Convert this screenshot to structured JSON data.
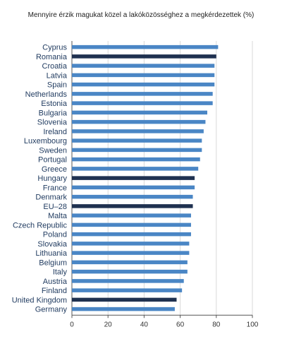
{
  "chart_data": {
    "type": "bar",
    "orientation": "horizontal",
    "title": "Mennyire érzik magukat közel a lakóközösséghez a megkérdezettek (%)",
    "categories": [
      "Cyprus",
      "Romania",
      "Croatia",
      "Latvia",
      "Spain",
      "Netherlands",
      "Estonia",
      "Bulgaria",
      "Slovenia",
      "Ireland",
      "Luxembourg",
      "Sweden",
      "Portugal",
      "Greece",
      "Hungary",
      "France",
      "Denmark",
      "EU–28",
      "Malta",
      "Czech Republic",
      "Poland",
      "Slovakia",
      "Lithuania",
      "Belgium",
      "Italy",
      "Austria",
      "Finland",
      "United Kingdom",
      "Germany"
    ],
    "values": [
      81,
      80,
      79,
      79,
      79,
      78,
      78,
      75,
      74,
      73,
      72,
      72,
      71,
      70,
      68,
      68,
      67,
      67,
      66,
      66,
      66,
      65,
      65,
      64,
      64,
      62,
      61,
      58,
      57
    ],
    "highlighted": [
      "Romania",
      "Hungary",
      "EU–28",
      "United Kingdom"
    ],
    "xticks": [
      0,
      20,
      40,
      60,
      80,
      100
    ],
    "xlim": [
      0,
      100
    ],
    "grid": true,
    "colors": {
      "bar": "#4a86c5",
      "highlight": "#1f3150",
      "grid": "#d9d9d9",
      "axis": "#555555"
    }
  }
}
